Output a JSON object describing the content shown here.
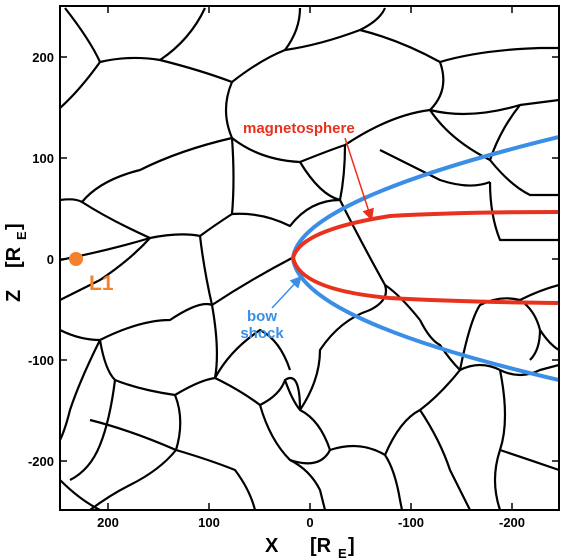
{
  "colors": {
    "magnetosphere": "#e8321e",
    "bow_shock": "#3a8ee6",
    "l1": "#f5812a",
    "cells": "#000000"
  },
  "axes": {
    "x_label": "X",
    "x_unit": "[R",
    "x_unit_sub": "E",
    "x_unit_close": "]",
    "y_label": "Z",
    "y_unit": "[R",
    "y_unit_sub": "E",
    "y_unit_close": "]",
    "x_ticks": [
      "200",
      "100",
      "0",
      "-100",
      "-200"
    ],
    "y_ticks": [
      "200",
      "100",
      "0",
      "-100",
      "-200"
    ]
  },
  "labels": {
    "l1": "L1",
    "magnetosphere": "magnetosphere",
    "bow_line1": "bow",
    "bow_line2": "shock"
  }
}
